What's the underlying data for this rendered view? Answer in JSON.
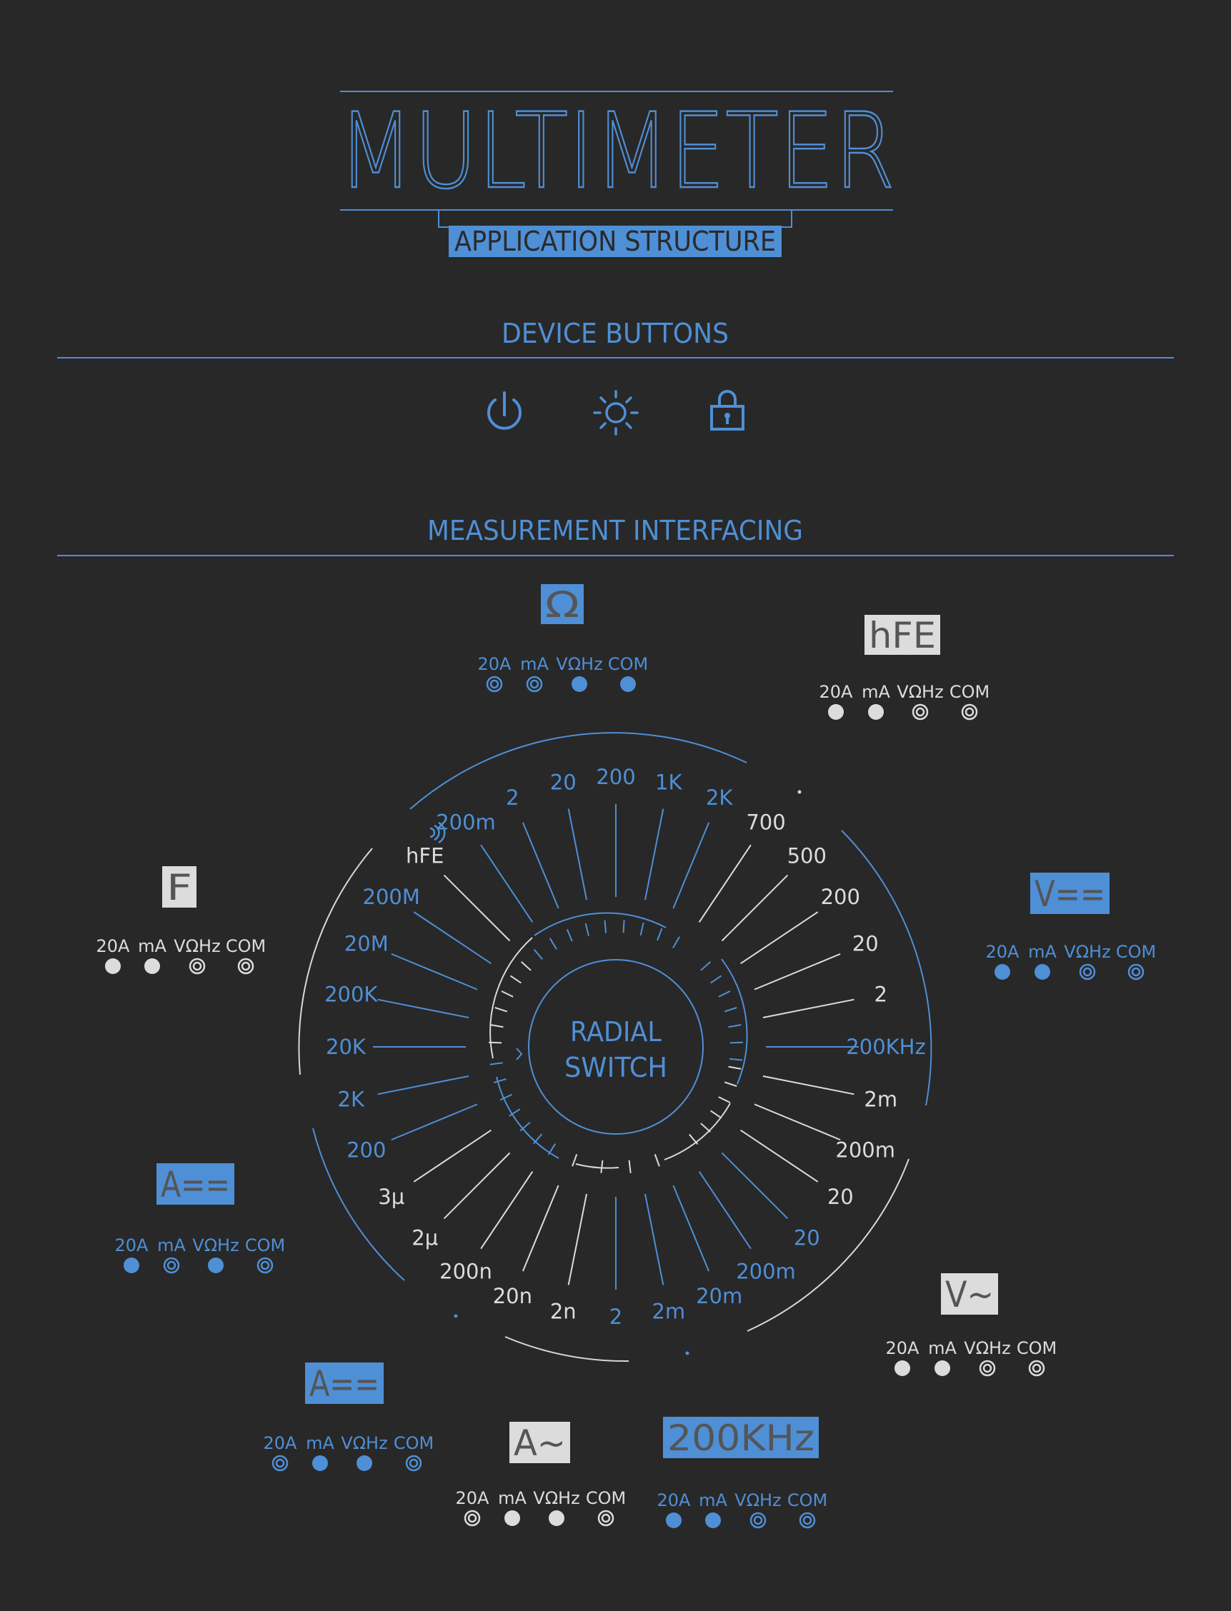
{
  "colors": {
    "background": "#282828",
    "blue": "#4f8fd6",
    "light": "#dcdcdc",
    "box_text": "#555555"
  },
  "header": {
    "title": "MULTIMETER",
    "subtitle": "APPLICATION STRUCTURE"
  },
  "sections": {
    "device_buttons": "DEVICE BUTTONS",
    "measurement": "MEASUREMENT INTERFACING"
  },
  "device_buttons": [
    {
      "icon": "power-icon"
    },
    {
      "icon": "brightness-icon"
    },
    {
      "icon": "lock-icon"
    }
  ],
  "jack_labels": [
    "20A",
    "mA",
    "VΩHz",
    "COM"
  ],
  "modes": [
    {
      "id": "ohm",
      "label": "Ω",
      "active": true,
      "jacks": [
        "ring",
        "ring",
        "dot",
        "dot"
      ]
    },
    {
      "id": "hfe",
      "label": "hFE",
      "active": false,
      "jacks": [
        "dot",
        "dot",
        "ring",
        "ring"
      ]
    },
    {
      "id": "farad",
      "label": "F",
      "active": false,
      "jacks": [
        "dot",
        "dot",
        "ring",
        "ring"
      ]
    },
    {
      "id": "vdc",
      "label": "V==",
      "active": true,
      "jacks": [
        "dot",
        "dot",
        "ring",
        "ring"
      ]
    },
    {
      "id": "adc-left",
      "label": "A==",
      "active": true,
      "jacks": [
        "dot",
        "ring",
        "dot",
        "ring"
      ]
    },
    {
      "id": "vac",
      "label": "V~",
      "active": false,
      "jacks": [
        "dot",
        "dot",
        "ring",
        "ring"
      ]
    },
    {
      "id": "adc-bottom",
      "label": "A==",
      "active": true,
      "jacks": [
        "ring",
        "dot",
        "dot",
        "ring"
      ]
    },
    {
      "id": "aac",
      "label": "A~",
      "active": false,
      "jacks": [
        "ring",
        "dot",
        "dot",
        "ring"
      ]
    },
    {
      "id": "freq",
      "label": "200KHz",
      "active": true,
      "jacks": [
        "dot",
        "dot",
        "ring",
        "ring"
      ]
    }
  ],
  "radial_switch": {
    "center_label_1": "RADIAL",
    "center_label_2": "SWITCH",
    "continuity_icon": "continuity-icon",
    "positions": [
      {
        "label": "200",
        "active": true
      },
      {
        "label": "2K",
        "active": true
      },
      {
        "label": "20K",
        "active": true
      },
      {
        "label": "200K",
        "active": true
      },
      {
        "label": "20M",
        "active": true
      },
      {
        "label": "200M",
        "active": true
      },
      {
        "label": "hFE",
        "active": false
      },
      {
        "label": "200m",
        "active": true
      },
      {
        "label": "2",
        "active": true
      },
      {
        "label": "20",
        "active": true
      },
      {
        "label": "200",
        "active": true
      },
      {
        "label": "1K",
        "active": true
      },
      {
        "label": "2K",
        "active": true
      },
      {
        "label": "700",
        "active": false
      },
      {
        "label": "500",
        "active": false
      },
      {
        "label": "200",
        "active": false
      },
      {
        "label": "20",
        "active": false
      },
      {
        "label": "2",
        "active": false
      },
      {
        "label": "200KHz",
        "active": true
      },
      {
        "label": "2m",
        "active": false
      },
      {
        "label": "200m",
        "active": false
      },
      {
        "label": "20",
        "active": false
      },
      {
        "label": "20",
        "active": true
      },
      {
        "label": "200m",
        "active": true
      },
      {
        "label": "20m",
        "active": true
      },
      {
        "label": "2m",
        "active": true
      },
      {
        "label": "2",
        "active": true
      },
      {
        "label": "2n",
        "active": false
      },
      {
        "label": "20n",
        "active": false
      },
      {
        "label": "200n",
        "active": false
      },
      {
        "label": "2µ",
        "active": false
      },
      {
        "label": "3µ",
        "active": false
      }
    ]
  }
}
